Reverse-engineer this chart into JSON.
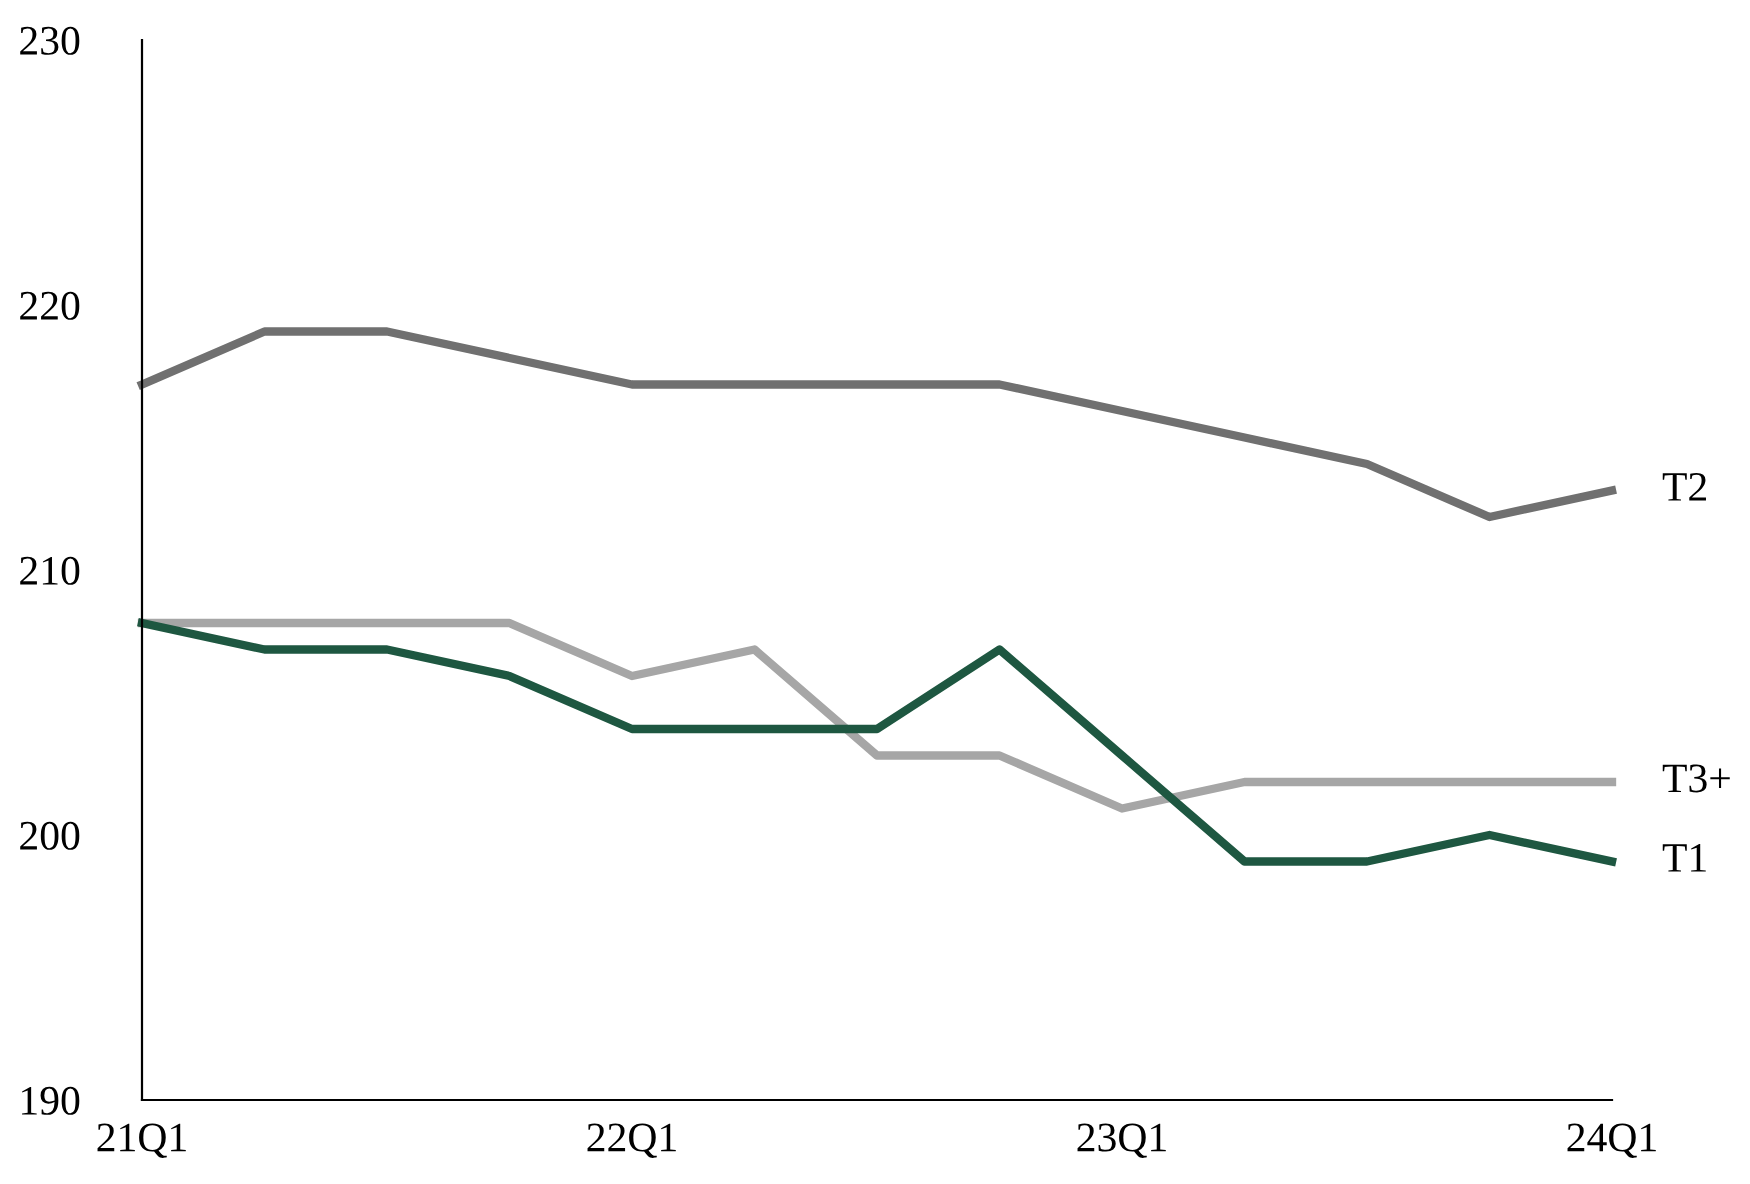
{
  "chart_data": {
    "type": "line",
    "categories": [
      "21Q1",
      null,
      null,
      null,
      "22Q1",
      null,
      null,
      null,
      "23Q1",
      null,
      null,
      null,
      "24Q1"
    ],
    "series": [
      {
        "name": "T2",
        "color": "#707070",
        "values": [
          217,
          219,
          219,
          218,
          217,
          217,
          217,
          217,
          216,
          215,
          214,
          212,
          213
        ]
      },
      {
        "name": "T3+",
        "color": "#a6a6a6",
        "values": [
          208,
          208,
          208,
          208,
          206,
          207,
          203,
          203,
          201,
          202,
          202,
          202,
          202
        ]
      },
      {
        "name": "T1",
        "color": "#1e5741",
        "values": [
          208,
          207,
          207,
          206,
          204,
          204,
          204,
          207,
          203,
          199,
          199,
          200,
          199
        ]
      }
    ],
    "ylim": [
      190,
      230
    ],
    "yticks": [
      190,
      200,
      210,
      220,
      230
    ],
    "grid": false,
    "legend": false,
    "marker": "none",
    "line_style": "solid"
  }
}
